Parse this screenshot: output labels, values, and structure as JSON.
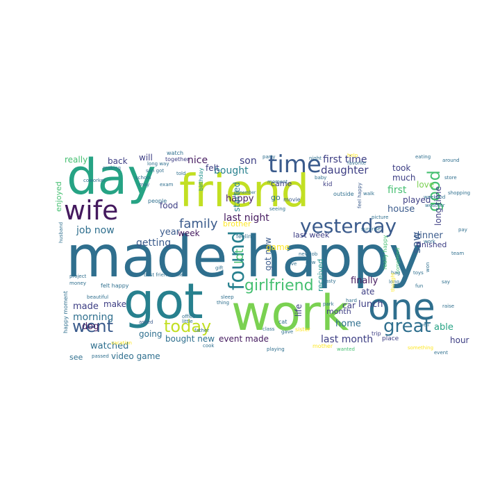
{
  "colors": {
    "purple": "#44195e",
    "indigo": "#3c3d83",
    "blue": "#3b5b8c",
    "teal": "#2f6f8e",
    "cyan": "#27808e",
    "aqua": "#21918c",
    "seagreen": "#26a384",
    "green": "#44bf70",
    "lime": "#7ad151",
    "yellowgreen": "#c2df23",
    "yellow": "#fde725",
    "background": "#ffffff"
  },
  "words": [
    {
      "text": "made happy",
      "color": "teal"
    },
    {
      "text": "friend",
      "color": "yellowgreen"
    },
    {
      "text": "day",
      "color": "seagreen"
    },
    {
      "text": "got",
      "color": "cyan"
    },
    {
      "text": "work",
      "color": "lime"
    },
    {
      "text": "one",
      "color": "teal"
    },
    {
      "text": "wife",
      "color": "purple"
    },
    {
      "text": "time",
      "color": "blue"
    },
    {
      "text": "yesterday",
      "color": "blue"
    },
    {
      "text": "found",
      "color": "cyan"
    },
    {
      "text": "today",
      "color": "yellowgreen"
    },
    {
      "text": "went",
      "color": "blue"
    },
    {
      "text": "great",
      "color": "teal"
    },
    {
      "text": "girlfriend",
      "color": "green"
    },
    {
      "text": "good",
      "color": "green"
    },
    {
      "text": "family",
      "color": "blue"
    },
    {
      "text": "first time",
      "color": "indigo"
    },
    {
      "text": "daughter",
      "color": "indigo"
    },
    {
      "text": "nice",
      "color": "purple"
    },
    {
      "text": "son",
      "color": "indigo"
    },
    {
      "text": "bought",
      "color": "cyan"
    },
    {
      "text": "happy",
      "color": "purple"
    },
    {
      "text": "last night",
      "color": "purple"
    },
    {
      "text": "lot",
      "color": "green"
    },
    {
      "text": "got new",
      "color": "blue"
    },
    {
      "text": "saw",
      "color": "blue"
    },
    {
      "text": "first",
      "color": "green"
    },
    {
      "text": "took",
      "color": "indigo"
    },
    {
      "text": "much",
      "color": "indigo"
    },
    {
      "text": "played",
      "color": "indigo"
    },
    {
      "text": "house",
      "color": "blue"
    },
    {
      "text": "long time",
      "color": "indigo"
    },
    {
      "text": "love",
      "color": "lime"
    },
    {
      "text": "dinner",
      "color": "blue"
    },
    {
      "text": "job now",
      "color": "teal"
    },
    {
      "text": "getting",
      "color": "blue"
    },
    {
      "text": "year",
      "color": "blue"
    },
    {
      "text": "food",
      "color": "indigo"
    },
    {
      "text": "week",
      "color": "purple"
    },
    {
      "text": "brother",
      "color": "yellow"
    },
    {
      "text": "game",
      "color": "yellow"
    },
    {
      "text": "last week",
      "color": "indigo"
    },
    {
      "text": "finished",
      "color": "indigo"
    },
    {
      "text": "made",
      "color": "indigo"
    },
    {
      "text": "make",
      "color": "indigo"
    },
    {
      "text": "morning",
      "color": "teal"
    },
    {
      "text": "dog",
      "color": "purple"
    },
    {
      "text": "watched",
      "color": "teal"
    },
    {
      "text": "going",
      "color": "teal"
    },
    {
      "text": "video game",
      "color": "teal"
    },
    {
      "text": "bought new",
      "color": "teal"
    },
    {
      "text": "event made",
      "color": "purple"
    },
    {
      "text": "last month",
      "color": "indigo"
    },
    {
      "text": "home",
      "color": "teal"
    },
    {
      "text": "month",
      "color": "indigo"
    },
    {
      "text": "car",
      "color": "indigo"
    },
    {
      "text": "lunch",
      "color": "indigo"
    },
    {
      "text": "ate",
      "color": "indigo"
    },
    {
      "text": "finally",
      "color": "purple"
    },
    {
      "text": "received",
      "color": "aqua"
    },
    {
      "text": "life",
      "color": "indigo"
    },
    {
      "text": "able",
      "color": "seagreen"
    },
    {
      "text": "hour",
      "color": "indigo"
    },
    {
      "text": "really",
      "color": "green"
    },
    {
      "text": "back",
      "color": "indigo"
    },
    {
      "text": "will",
      "color": "indigo"
    },
    {
      "text": "felt",
      "color": "indigo"
    },
    {
      "text": "enjoyed",
      "color": "green"
    },
    {
      "text": "started",
      "color": "cyan"
    },
    {
      "text": "see",
      "color": "teal"
    },
    {
      "text": "go",
      "color": "teal"
    },
    {
      "text": "came",
      "color": "indigo"
    },
    {
      "text": "kid",
      "color": "indigo"
    },
    {
      "text": "watch",
      "color": "teal"
    },
    {
      "text": "together",
      "color": "indigo"
    },
    {
      "text": "people",
      "color": "teal"
    },
    {
      "text": "birthday",
      "color": "aqua"
    },
    {
      "text": "movie",
      "color": "blue"
    },
    {
      "text": "moment",
      "color": "teal"
    },
    {
      "text": "seeing",
      "color": "teal"
    },
    {
      "text": "outside",
      "color": "teal"
    },
    {
      "text": "feel happy",
      "color": "blue"
    },
    {
      "text": "really happy",
      "color": "green"
    },
    {
      "text": "felt happy",
      "color": "teal"
    },
    {
      "text": "happy moment",
      "color": "teal"
    },
    {
      "text": "place",
      "color": "indigo"
    },
    {
      "text": "trip",
      "color": "indigo"
    },
    {
      "text": "sister",
      "color": "yellow"
    },
    {
      "text": "thing",
      "color": "teal"
    },
    {
      "text": "feeling",
      "color": "teal"
    },
    {
      "text": "office",
      "color": "teal"
    },
    {
      "text": "class",
      "color": "teal"
    },
    {
      "text": "asked",
      "color": "blue"
    },
    {
      "text": "mother",
      "color": "yellow"
    },
    {
      "text": "little",
      "color": "teal"
    },
    {
      "text": "new job",
      "color": "teal"
    },
    {
      "text": "wanted",
      "color": "green"
    },
    {
      "text": "completed",
      "color": "green"
    },
    {
      "text": "father",
      "color": "teal"
    },
    {
      "text": "cat",
      "color": "teal"
    },
    {
      "text": "vacation",
      "color": "yellow"
    },
    {
      "text": "playing",
      "color": "teal"
    },
    {
      "text": "something",
      "color": "yellow"
    },
    {
      "text": "around",
      "color": "teal"
    },
    {
      "text": "bag",
      "color": "teal"
    },
    {
      "text": "long",
      "color": "teal"
    },
    {
      "text": "thought",
      "color": "yellow"
    },
    {
      "text": "hard",
      "color": "teal"
    },
    {
      "text": "help",
      "color": "yellow"
    },
    {
      "text": "favorite",
      "color": "teal"
    },
    {
      "text": "walk",
      "color": "teal"
    },
    {
      "text": "live",
      "color": "teal"
    },
    {
      "text": "best friend",
      "color": "teal"
    },
    {
      "text": "new",
      "color": "teal"
    },
    {
      "text": "making",
      "color": "teal"
    },
    {
      "text": "passed",
      "color": "teal"
    },
    {
      "text": "exam",
      "color": "teal"
    },
    {
      "text": "school",
      "color": "teal"
    },
    {
      "text": "remember",
      "color": "teal"
    },
    {
      "text": "told",
      "color": "teal"
    },
    {
      "text": "cook",
      "color": "teal"
    },
    {
      "text": "gave",
      "color": "teal"
    },
    {
      "text": "toys",
      "color": "teal"
    },
    {
      "text": "event",
      "color": "teal"
    },
    {
      "text": "work",
      "color": "teal"
    },
    {
      "text": "night",
      "color": "teal"
    },
    {
      "text": "well",
      "color": "teal"
    },
    {
      "text": "say",
      "color": "teal"
    },
    {
      "text": "may",
      "color": "teal"
    },
    {
      "text": "fun",
      "color": "teal"
    },
    {
      "text": "husband",
      "color": "teal"
    },
    {
      "text": "coworker",
      "color": "teal"
    },
    {
      "text": "surprise",
      "color": "teal"
    },
    {
      "text": "gift",
      "color": "teal"
    },
    {
      "text": "party",
      "color": "teal"
    },
    {
      "text": "baby",
      "color": "teal"
    },
    {
      "text": "store",
      "color": "teal"
    },
    {
      "text": "shopping",
      "color": "teal"
    },
    {
      "text": "eating",
      "color": "teal"
    },
    {
      "text": "called",
      "color": "teal"
    },
    {
      "text": "beautiful",
      "color": "teal"
    },
    {
      "text": "weekend",
      "color": "teal"
    },
    {
      "text": "weather",
      "color": "teal"
    },
    {
      "text": "sleep",
      "color": "teal"
    },
    {
      "text": "team",
      "color": "teal"
    },
    {
      "text": "won",
      "color": "teal"
    },
    {
      "text": "raise",
      "color": "teal"
    },
    {
      "text": "project",
      "color": "teal"
    },
    {
      "text": "money",
      "color": "teal"
    },
    {
      "text": "tasty",
      "color": "teal"
    },
    {
      "text": "park",
      "color": "teal"
    },
    {
      "text": "picture",
      "color": "teal"
    },
    {
      "text": "pay",
      "color": "teal"
    },
    {
      "text": "son got",
      "color": "teal"
    },
    {
      "text": "long way",
      "color": "teal"
    }
  ]
}
